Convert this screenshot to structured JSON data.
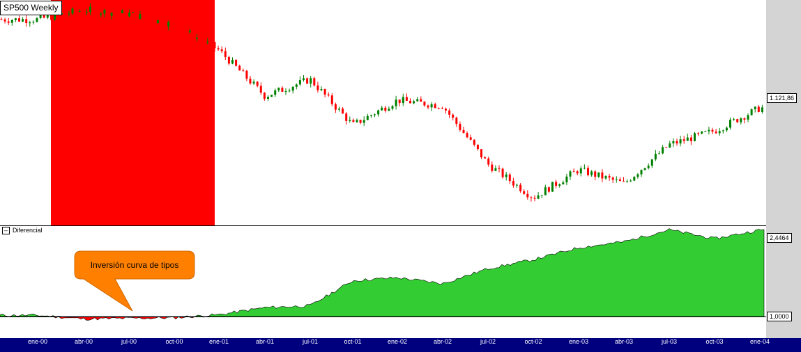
{
  "chart": {
    "title": "SP500 Weekly",
    "last_price_label": "1.121,86"
  },
  "indicator": {
    "name": "Diferencial",
    "collapse_symbol": "–",
    "last_value_label": "2,4464",
    "baseline_label": "1,0000"
  },
  "annotation": {
    "text": "Inversión curva de tipos"
  },
  "time_axis": {
    "labels": [
      "ene-00",
      "abr-00",
      "jul-00",
      "oct-00",
      "ene-01",
      "abr-01",
      "jul-01",
      "oct-01",
      "ene-02",
      "abr-02",
      "jul-02",
      "oct-02",
      "ene-03",
      "abr-03",
      "jul-03",
      "oct-03",
      "ene-04"
    ]
  },
  "colors": {
    "highlight_region": "#ff0000",
    "candle_up": "#008000",
    "candle_down": "#ff0000",
    "area_positive": "#33cc33",
    "area_negative": "#ff0000",
    "callout_fill": "#ff8000",
    "axis_bar": "#00007f",
    "right_margin": "#d4d4d4"
  },
  "chart_data": {
    "type": "line",
    "series": [
      {
        "name": "SP500 Weekly",
        "x": [
          "ene-00",
          "abr-00",
          "jul-00",
          "oct-00",
          "ene-01",
          "abr-01",
          "jul-01",
          "oct-01",
          "ene-02",
          "abr-02",
          "jul-02",
          "oct-02",
          "ene-03",
          "abr-03",
          "jul-03",
          "oct-03",
          "ene-04"
        ],
        "values": [
          1440,
          1475,
          1460,
          1420,
          1330,
          1165,
          1225,
          1060,
          1150,
          1130,
          920,
          800,
          900,
          850,
          990,
          1040,
          1121.86
        ]
      },
      {
        "name": "Diferencial",
        "x": [
          "ene-00",
          "abr-00",
          "jul-00",
          "oct-00",
          "ene-01",
          "abr-01",
          "jul-01",
          "oct-01",
          "ene-02",
          "abr-02",
          "jul-02",
          "oct-02",
          "ene-03",
          "abr-03",
          "jul-03",
          "oct-03",
          "ene-04"
        ],
        "values": [
          1.02,
          0.96,
          0.97,
          0.98,
          1.03,
          1.15,
          1.18,
          1.6,
          1.65,
          1.55,
          1.8,
          1.95,
          2.15,
          2.25,
          2.45,
          2.3,
          2.4464
        ]
      }
    ]
  }
}
